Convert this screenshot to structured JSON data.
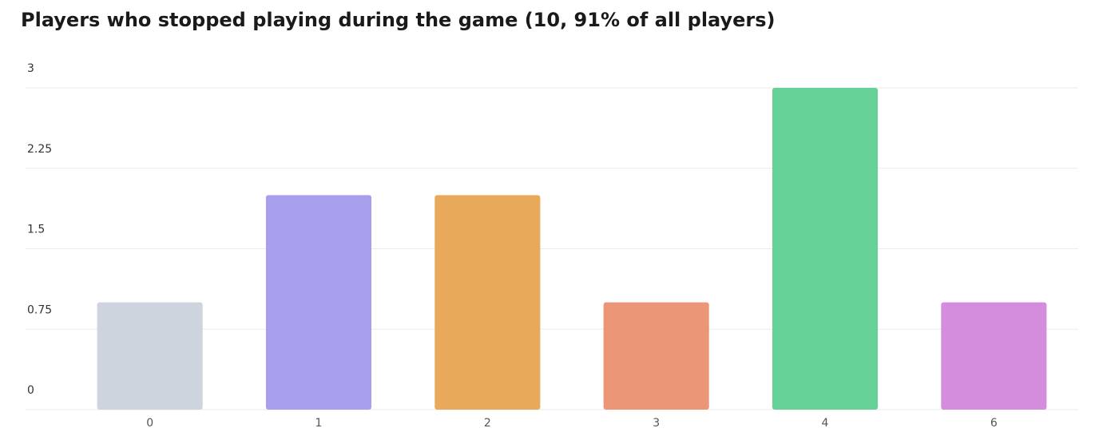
{
  "chart_data": {
    "type": "bar",
    "title": "Players who stopped playing during the game (10, 91% of all players)",
    "categories": [
      "0",
      "1",
      "2",
      "3",
      "4",
      "6"
    ],
    "values": [
      1,
      2,
      2,
      1,
      3,
      1
    ],
    "colors": [
      "#cdd4dd",
      "#a89fec",
      "#e8a95b",
      "#ea9677",
      "#66d197",
      "#d48cdc"
    ],
    "ylim": [
      0,
      3
    ],
    "yticks": [
      0,
      0.75,
      1.5,
      2.25,
      3
    ],
    "grid": true
  }
}
